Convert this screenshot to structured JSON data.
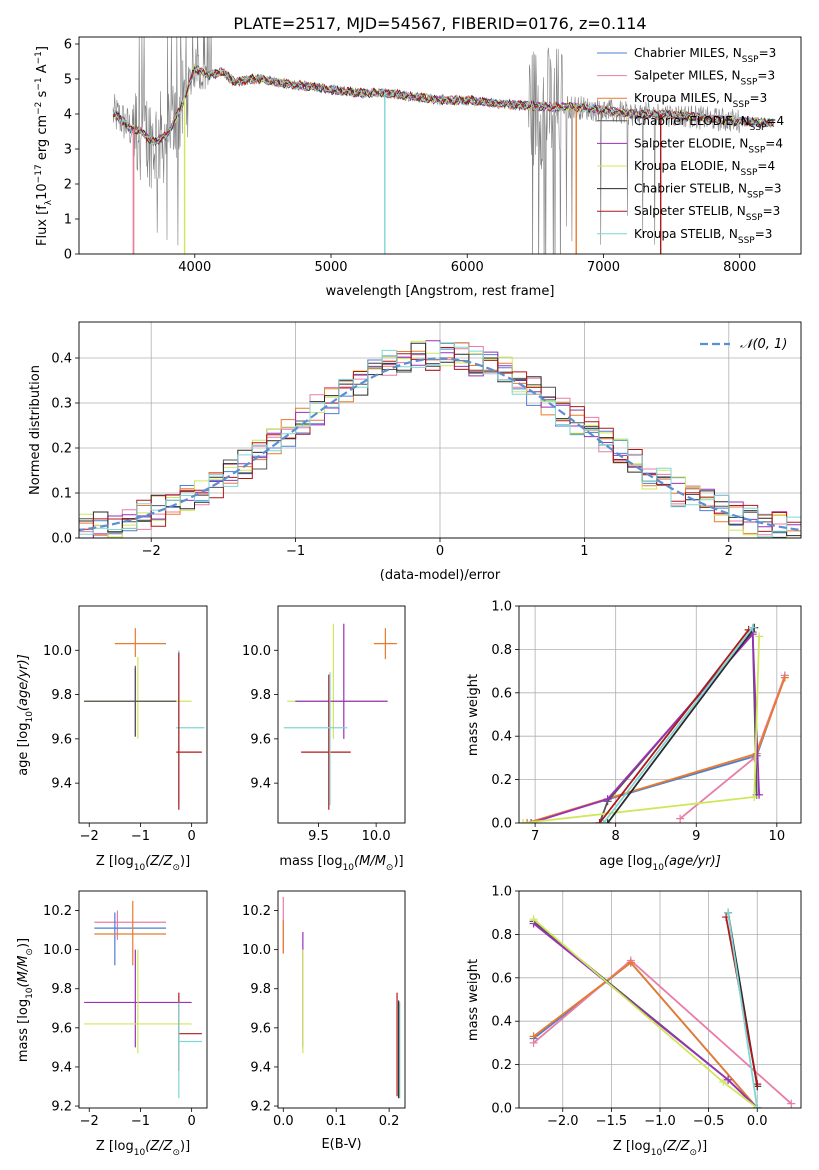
{
  "figure_title": "PLATE=2517, MJD=54567, FIBERID=0176, z=0.114",
  "colors": {
    "chabrier_miles": "#4a7fd4",
    "salpeter_miles": "#e87ca8",
    "kroupa_miles": "#e87b2c",
    "chabrier_elodie": "#555555",
    "salpeter_elodie": "#9a30b8",
    "kroupa_elodie": "#cfe85a",
    "chabrier_stelib": "#2a2a2a",
    "salpeter_stelib": "#b01818",
    "kroupa_stelib": "#7fd6d6",
    "data": "#808080",
    "gaussian": "#5b8fd4"
  },
  "chart_data": [
    {
      "id": "spectrum",
      "type": "line",
      "title": "PLATE=2517, MJD=54567, FIBERID=0176, z=0.114",
      "xlabel": "wavelength [Angstrom, rest frame]",
      "ylabel_main": "Flux [f",
      "ylabel_sub": "λ",
      "ylabel_rest": "10",
      "ylabel_exp1": "−17",
      "ylabel_unit1": " erg cm",
      "ylabel_exp2": "−2",
      "ylabel_unit2": " s",
      "ylabel_exp3": "−1",
      "ylabel_unit3": " A",
      "ylabel_exp4": "−1",
      "ylabel_close": "]",
      "xlim": [
        3150,
        8450
      ],
      "ylim": [
        0,
        6.2
      ],
      "xticks": [
        4000,
        5000,
        6000,
        7000,
        8000
      ],
      "yticks": [
        0,
        1,
        2,
        3,
        4,
        5,
        6
      ],
      "continuum": {
        "x": [
          3400,
          3450,
          3520,
          3600,
          3700,
          3800,
          3900,
          4000,
          4100,
          4200,
          4300,
          4400,
          4500,
          4600,
          4800,
          5000,
          5200,
          5400,
          5600,
          5800,
          6000,
          6200,
          6400,
          6600,
          6800,
          7000,
          7200,
          7400,
          7600,
          7800,
          8000,
          8200
        ],
        "y": [
          4.0,
          3.9,
          3.6,
          3.5,
          3.2,
          3.4,
          4.2,
          5.3,
          5.1,
          5.2,
          4.9,
          5.0,
          5.0,
          4.9,
          4.8,
          4.7,
          4.6,
          4.6,
          4.5,
          4.4,
          4.4,
          4.3,
          4.25,
          4.2,
          4.2,
          4.1,
          4.0,
          4.0,
          3.95,
          3.85,
          3.8,
          3.75
        ]
      },
      "dips": [
        {
          "x": 3550,
          "series": [
            "kroupa_miles",
            "salpeter_miles"
          ]
        },
        {
          "x": 3925,
          "series": [
            "kroupa_elodie"
          ]
        },
        {
          "x": 5395,
          "series": [
            "kroupa_stelib"
          ]
        },
        {
          "x": 6800,
          "series": [
            "kroupa_miles"
          ]
        },
        {
          "x": 7420,
          "series": [
            "salpeter_stelib"
          ]
        }
      ],
      "legend": [
        {
          "key": "chabrier_miles",
          "label": "Chabrier MILES, N",
          "sub": "SSP",
          "value": "=3"
        },
        {
          "key": "salpeter_miles",
          "label": "Salpeter MILES, N",
          "sub": "SSP",
          "value": "=3"
        },
        {
          "key": "kroupa_miles",
          "label": "Kroupa MILES, N",
          "sub": "SSP",
          "value": "=3"
        },
        {
          "key": "chabrier_elodie",
          "label": "Chabrier ELODIE, N",
          "sub": "SSP",
          "value": "=4"
        },
        {
          "key": "salpeter_elodie",
          "label": "Salpeter ELODIE, N",
          "sub": "SSP",
          "value": "=4"
        },
        {
          "key": "kroupa_elodie",
          "label": "Kroupa ELODIE, N",
          "sub": "SSP",
          "value": "=4"
        },
        {
          "key": "chabrier_stelib",
          "label": "Chabrier STELIB, N",
          "sub": "SSP",
          "value": "=3"
        },
        {
          "key": "salpeter_stelib",
          "label": "Salpeter STELIB, N",
          "sub": "SSP",
          "value": "=3"
        },
        {
          "key": "kroupa_stelib",
          "label": "Kroupa STELIB, N",
          "sub": "SSP",
          "value": "=3"
        }
      ],
      "legend_placement": "right"
    },
    {
      "id": "residuals",
      "type": "line",
      "xlabel": "(data-model)/error",
      "ylabel": "Normed distribution",
      "xlim": [
        -2.5,
        2.5
      ],
      "ylim": [
        0,
        0.48
      ],
      "xticks": [
        -2,
        -1,
        0,
        1,
        2
      ],
      "yticks": [
        0.0,
        0.1,
        0.2,
        0.3,
        0.4
      ],
      "grid": true,
      "legend_label": "𝒩(0, 1)",
      "legend_placement": "top-right",
      "hist_bin_width": 0.1
    },
    {
      "id": "age_vs_z",
      "type": "scatter",
      "xlabel": "Z [log",
      "xlabel_sub": "10",
      "xlabel_rest": "(Z/Z",
      "xlabel_sun": "⊙",
      "xlabel_close": ")]",
      "ylabel": "age  [log",
      "ylabel_sub": "10",
      "ylabel_rest": "(age/yr)]",
      "xlim": [
        -2.2,
        0.3
      ],
      "ylim": [
        9.22,
        10.2
      ],
      "xticks": [
        -2,
        -1,
        0
      ],
      "yticks": [
        9.4,
        9.6,
        9.8,
        10.0
      ],
      "crosses": [
        {
          "x": -1.1,
          "xlo": -1.5,
          "xhi": -0.5,
          "y": 10.03,
          "ylo": 9.97,
          "yhi": 10.1,
          "c": "kroupa_miles"
        },
        {
          "x": -1.1,
          "xlo": -2.1,
          "xhi": -0.3,
          "y": 9.77,
          "ylo": 9.61,
          "yhi": 9.93,
          "c": "salpeter_elodie"
        },
        {
          "x": -1.05,
          "xlo": -2.1,
          "xhi": 0.0,
          "y": 9.77,
          "ylo": 9.6,
          "yhi": 9.97,
          "c": "kroupa_elodie"
        },
        {
          "x": -1.1,
          "xlo": -2.1,
          "xhi": -0.3,
          "y": 9.77,
          "ylo": 9.61,
          "yhi": 9.92,
          "c": "chabrier_elodie"
        },
        {
          "x": -0.25,
          "xlo": -0.3,
          "xhi": 0.25,
          "y": 9.65,
          "ylo": 9.3,
          "yhi": 10.0,
          "c": "kroupa_stelib"
        },
        {
          "x": -0.25,
          "xlo": -0.3,
          "xhi": 0.2,
          "y": 9.54,
          "ylo": 9.28,
          "yhi": 9.99,
          "c": "salpeter_stelib"
        }
      ]
    },
    {
      "id": "age_vs_mass",
      "type": "scatter",
      "xlabel": "mass [log",
      "xlabel_sub": "10",
      "xlabel_rest": "(M/M",
      "xlabel_sun": "⊙",
      "xlabel_close": ")]",
      "xlim": [
        9.15,
        10.25
      ],
      "ylim": [
        9.22,
        10.2
      ],
      "xticks": [
        9.5,
        10.0
      ],
      "yticks": [
        9.4,
        9.6,
        9.8,
        10.0
      ],
      "crosses": [
        {
          "x": 10.08,
          "xlo": 9.98,
          "xhi": 10.18,
          "y": 10.03,
          "ylo": 9.96,
          "yhi": 10.1,
          "c": "kroupa_miles"
        },
        {
          "x": 9.63,
          "xlo": 9.23,
          "xhi": 10.05,
          "y": 9.77,
          "ylo": 9.6,
          "yhi": 10.12,
          "c": "kroupa_elodie"
        },
        {
          "x": 9.72,
          "xlo": 9.3,
          "xhi": 10.1,
          "y": 9.77,
          "ylo": 9.6,
          "yhi": 10.12,
          "c": "salpeter_elodie"
        },
        {
          "x": 9.59,
          "xlo": 9.35,
          "xhi": 9.78,
          "y": 9.54,
          "ylo": 9.28,
          "yhi": 9.89,
          "c": "salpeter_stelib"
        },
        {
          "x": 9.6,
          "xlo": 9.2,
          "xhi": 9.75,
          "y": 9.65,
          "ylo": 9.3,
          "yhi": 9.9,
          "c": "kroupa_stelib"
        }
      ]
    },
    {
      "id": "weight_vs_age",
      "type": "line",
      "xlabel": "age  [log",
      "xlabel_sub": "10",
      "xlabel_rest": "(age/yr)]",
      "ylabel": "mass weight",
      "xlim": [
        6.8,
        10.3
      ],
      "ylim": [
        0,
        1.0
      ],
      "xticks": [
        7,
        8,
        9,
        10
      ],
      "yticks": [
        0.0,
        0.2,
        0.4,
        0.6,
        0.8,
        1.0
      ],
      "grid": true,
      "series": [
        {
          "c": "chabrier_miles",
          "x": [
            6.9,
            9.75,
            10.1
          ],
          "y": [
            0.0,
            0.31,
            0.68
          ]
        },
        {
          "c": "salpeter_miles",
          "x": [
            8.8,
            9.72,
            10.1
          ],
          "y": [
            0.02,
            0.3,
            0.68
          ]
        },
        {
          "c": "kroupa_miles",
          "x": [
            6.9,
            9.75,
            10.1
          ],
          "y": [
            0.0,
            0.32,
            0.67
          ]
        },
        {
          "c": "chabrier_elodie",
          "x": [
            7.8,
            7.9,
            9.7,
            9.75
          ],
          "y": [
            0.0,
            0.1,
            0.88,
            0.13
          ]
        },
        {
          "c": "salpeter_elodie",
          "x": [
            6.95,
            7.9,
            9.7,
            9.78
          ],
          "y": [
            0.0,
            0.11,
            0.87,
            0.13
          ]
        },
        {
          "c": "kroupa_elodie",
          "x": [
            6.85,
            9.72,
            9.78
          ],
          "y": [
            0.0,
            0.12,
            0.86
          ]
        },
        {
          "c": "chabrier_stelib",
          "x": [
            7.9,
            9.72
          ],
          "y": [
            0.0,
            0.9
          ]
        },
        {
          "c": "salpeter_stelib",
          "x": [
            7.8,
            9.65
          ],
          "y": [
            0.0,
            0.89
          ]
        },
        {
          "c": "kroupa_stelib",
          "x": [
            7.85,
            9.7
          ],
          "y": [
            0.0,
            0.9
          ]
        }
      ]
    },
    {
      "id": "mass_vs_z",
      "type": "scatter",
      "xlabel": "Z [log",
      "xlabel_sub": "10",
      "xlabel_rest": "(Z/Z",
      "xlabel_sun": "⊙",
      "xlabel_close": ")]",
      "ylabel": "mass [log",
      "ylabel_sub": "10",
      "ylabel_rest": "(M/M",
      "ylabel_sun": "⊙",
      "ylabel_close": ")]",
      "xlim": [
        -2.2,
        0.3
      ],
      "ylim": [
        9.19,
        10.3
      ],
      "xticks": [
        -2,
        -1,
        0
      ],
      "yticks": [
        9.2,
        9.4,
        9.6,
        9.8,
        10.0,
        10.2
      ],
      "crosses": [
        {
          "x": -1.45,
          "xlo": -1.9,
          "xhi": -0.5,
          "y": 10.14,
          "ylo": 10.05,
          "yhi": 10.2,
          "c": "salpeter_miles"
        },
        {
          "x": -1.5,
          "xlo": -1.9,
          "xhi": -0.5,
          "y": 10.11,
          "ylo": 9.92,
          "yhi": 10.19,
          "c": "chabrier_miles"
        },
        {
          "x": -1.15,
          "xlo": -1.9,
          "xhi": -0.5,
          "y": 10.08,
          "ylo": 9.92,
          "yhi": 10.25,
          "c": "kroupa_miles"
        },
        {
          "x": -1.1,
          "xlo": -2.1,
          "xhi": 0.0,
          "y": 9.73,
          "ylo": 9.5,
          "yhi": 10.0,
          "c": "salpeter_elodie"
        },
        {
          "x": -1.05,
          "xlo": -2.1,
          "xhi": 0.0,
          "y": 9.62,
          "ylo": 9.47,
          "yhi": 10.0,
          "c": "kroupa_elodie"
        },
        {
          "x": -0.25,
          "xlo": -0.25,
          "xhi": 0.2,
          "y": 9.57,
          "ylo": 9.38,
          "yhi": 9.78,
          "c": "salpeter_stelib"
        },
        {
          "x": -0.25,
          "xlo": -0.25,
          "xhi": 0.2,
          "y": 9.53,
          "ylo": 9.24,
          "yhi": 9.73,
          "c": "kroupa_stelib"
        }
      ]
    },
    {
      "id": "mass_vs_ebv",
      "type": "scatter",
      "xlabel": "E(B-V)",
      "xlim": [
        -0.01,
        0.23
      ],
      "ylim": [
        9.19,
        10.3
      ],
      "xticks": [
        0.0,
        0.1,
        0.2
      ],
      "yticks": [
        9.2,
        9.4,
        9.6,
        9.8,
        10.0,
        10.2
      ],
      "crosses": [
        {
          "x": 0.0,
          "y": 10.14,
          "ylo": 9.98,
          "yhi": 10.27,
          "c": "salpeter_miles"
        },
        {
          "x": 0.0,
          "y": 10.08,
          "ylo": 9.98,
          "yhi": 10.15,
          "c": "kroupa_miles"
        },
        {
          "x": 0.037,
          "y": 9.73,
          "ylo": 9.5,
          "yhi": 10.09,
          "c": "salpeter_elodie"
        },
        {
          "x": 0.037,
          "y": 9.62,
          "ylo": 9.47,
          "yhi": 10.0,
          "c": "kroupa_elodie"
        },
        {
          "x": 0.215,
          "y": 9.57,
          "ylo": 9.25,
          "yhi": 9.78,
          "c": "salpeter_stelib"
        },
        {
          "x": 0.22,
          "y": 9.53,
          "ylo": 9.24,
          "yhi": 9.73,
          "c": "kroupa_stelib"
        },
        {
          "x": 0.218,
          "y": 9.55,
          "ylo": 9.24,
          "yhi": 9.74,
          "c": "chabrier_stelib"
        }
      ]
    },
    {
      "id": "weight_vs_z",
      "type": "line",
      "xlabel": "Z [log",
      "xlabel_sub": "10",
      "xlabel_rest": "(Z/Z",
      "xlabel_sun": "⊙",
      "xlabel_close": ")]",
      "ylabel": "mass weight",
      "xlim": [
        -2.45,
        0.45
      ],
      "ylim": [
        0,
        1.0
      ],
      "xticks": [
        -2.0,
        -1.5,
        -1.0,
        -0.5,
        0.0
      ],
      "xticklabels": [
        "−2.0",
        "−1.5",
        "−1.0",
        "−0.5",
        "0.0"
      ],
      "yticks": [
        0.0,
        0.2,
        0.4,
        0.6,
        0.8,
        1.0
      ],
      "grid": true,
      "series": [
        {
          "c": "chabrier_miles",
          "x": [
            -2.3,
            -1.3,
            0.0
          ],
          "y": [
            0.32,
            0.67,
            0.0
          ]
        },
        {
          "c": "salpeter_miles",
          "x": [
            -2.3,
            -1.3,
            0.35
          ],
          "y": [
            0.3,
            0.68,
            0.02
          ]
        },
        {
          "c": "kroupa_miles",
          "x": [
            -2.3,
            -1.3,
            0.0
          ],
          "y": [
            0.33,
            0.67,
            0.0
          ]
        },
        {
          "c": "chabrier_elodie",
          "x": [
            -2.3,
            -0.3,
            0.0
          ],
          "y": [
            0.86,
            0.13,
            0.0
          ]
        },
        {
          "c": "salpeter_elodie",
          "x": [
            -2.3,
            -0.3,
            0.0
          ],
          "y": [
            0.85,
            0.13,
            0.0
          ]
        },
        {
          "c": "kroupa_elodie",
          "x": [
            -2.3,
            -0.35,
            0.0
          ],
          "y": [
            0.87,
            0.12,
            0.0
          ]
        },
        {
          "c": "chabrier_stelib",
          "x": [
            -0.3,
            0.0
          ],
          "y": [
            0.9,
            0.1
          ]
        },
        {
          "c": "salpeter_stelib",
          "x": [
            -0.32,
            0.0
          ],
          "y": [
            0.88,
            0.11
          ]
        },
        {
          "c": "kroupa_stelib",
          "x": [
            -0.3,
            0.0
          ],
          "y": [
            0.9,
            0.0
          ]
        }
      ]
    }
  ]
}
